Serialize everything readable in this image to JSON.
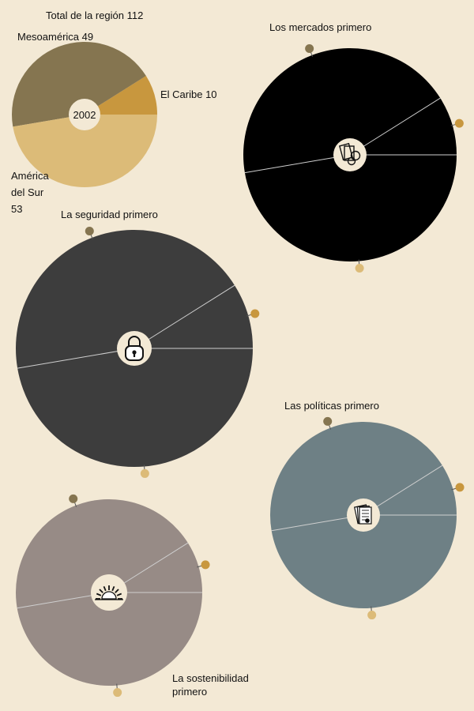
{
  "colors": {
    "background": "#f3e9d5",
    "mesoamerica": "#857550",
    "caribe": "#c8973e",
    "sur": "#dcbb78",
    "mercados": "#000000",
    "seguridad": "#3d3d3d",
    "politicas": "#6e8085",
    "sostenibilidad": "#978b86",
    "dot_dark": "#857550",
    "dot_orange": "#c8973e",
    "dot_light": "#dcbb78",
    "center_fill": "#f3e9d5",
    "divider": "#cfcfcf"
  },
  "chart_data": [
    {
      "type": "pie",
      "title": "Total de la región 112",
      "center_label": "2002",
      "slices": [
        {
          "label": "Mesoamérica 49",
          "value": 49
        },
        {
          "label": "El Caribe 10",
          "value": 10
        },
        {
          "label_lines": [
            "América",
            "del Sur",
            "53"
          ],
          "value": 53
        }
      ]
    },
    {
      "type": "pie",
      "title": "Los mercados primero",
      "icon": "books-icon",
      "slices": [
        {
          "region": "Mesoamérica",
          "value": 49
        },
        {
          "region": "El Caribe",
          "value": 10
        },
        {
          "region": "América del Sur",
          "value": 53
        }
      ]
    },
    {
      "type": "pie",
      "title": "La seguridad primero",
      "icon": "padlock-icon",
      "slices": [
        {
          "region": "Mesoamérica",
          "value": 49
        },
        {
          "region": "El Caribe",
          "value": 10
        },
        {
          "region": "América del Sur",
          "value": 53
        }
      ]
    },
    {
      "type": "pie",
      "title": "Las políticas primero",
      "icon": "documents-icon",
      "slices": [
        {
          "region": "Mesoamérica",
          "value": 49
        },
        {
          "region": "El Caribe",
          "value": 10
        },
        {
          "region": "América del Sur",
          "value": 53
        }
      ]
    },
    {
      "type": "pie",
      "title_lines": [
        "La sostenibilidad",
        "primero"
      ],
      "icon": "sunrise-icon",
      "slices": [
        {
          "region": "Mesoamérica",
          "value": 49
        },
        {
          "region": "El Caribe",
          "value": 10
        },
        {
          "region": "América del Sur",
          "value": 53
        }
      ]
    }
  ]
}
